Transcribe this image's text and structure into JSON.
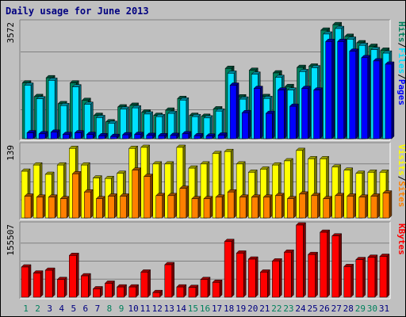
{
  "title": "Daily usage for June 2013",
  "colors": {
    "background": "#c0c0c0",
    "panel": "#c0c0c0",
    "title": "#000080",
    "hits": "#00805c",
    "files": "#00e0ff",
    "pages": "#0000ff",
    "visits": "#ffff00",
    "sites": "#ff8000",
    "kbytes": "#ff0000",
    "weekend_label": "#00805c",
    "weekday_label": "#000080"
  },
  "chart_data": [
    {
      "type": "bar",
      "name": "hits-files-pages",
      "max_label": "3572",
      "ylim": [
        0,
        3572
      ],
      "legend": [
        "Pages",
        "/",
        "Files",
        "/",
        "Hits"
      ],
      "categories": [
        "1",
        "2",
        "3",
        "4",
        "5",
        "6",
        "7",
        "8",
        "9",
        "10",
        "11",
        "12",
        "13",
        "14",
        "15",
        "16",
        "17",
        "18",
        "19",
        "20",
        "21",
        "22",
        "23",
        "24",
        "25",
        "26",
        "27",
        "28",
        "29",
        "30",
        "31"
      ],
      "series": [
        {
          "name": "Hits",
          "values": [
            1720,
            1300,
            1880,
            1080,
            1720,
            1180,
            720,
            520,
            980,
            1030,
            820,
            720,
            880,
            1240,
            720,
            690,
            920,
            2170,
            1290,
            2110,
            1300,
            2030,
            1610,
            2200,
            2240,
            3350,
            3520,
            3160,
            2960,
            2850,
            2730
          ]
        },
        {
          "name": "Files",
          "values": [
            1650,
            1230,
            1800,
            1020,
            1600,
            1060,
            650,
            470,
            910,
            950,
            760,
            680,
            780,
            1190,
            680,
            640,
            850,
            2020,
            1220,
            1990,
            1240,
            1890,
            1500,
            2070,
            2190,
            3230,
            3400,
            3070,
            2880,
            2750,
            2640
          ]
        },
        {
          "name": "Pages",
          "values": [
            180,
            150,
            200,
            130,
            180,
            130,
            90,
            70,
            120,
            130,
            100,
            90,
            100,
            150,
            90,
            80,
            110,
            1650,
            800,
            1550,
            780,
            1500,
            1000,
            1550,
            1500,
            3000,
            3000,
            2700,
            2500,
            2400,
            2300
          ]
        }
      ]
    },
    {
      "type": "bar",
      "name": "visits-sites",
      "max_label": "139",
      "ylim": [
        0,
        139
      ],
      "legend": [
        "Sites",
        "/",
        "Visits"
      ],
      "categories": [
        "1",
        "2",
        "3",
        "4",
        "5",
        "6",
        "7",
        "8",
        "9",
        "10",
        "11",
        "12",
        "13",
        "14",
        "15",
        "16",
        "17",
        "18",
        "19",
        "20",
        "21",
        "22",
        "23",
        "24",
        "25",
        "26",
        "27",
        "28",
        "29",
        "30",
        "31"
      ],
      "series": [
        {
          "name": "Visits",
          "values": [
            90,
            102,
            84,
            102,
            134,
            102,
            77,
            76,
            86,
            134,
            136,
            104,
            104,
            136,
            96,
            104,
            124,
            128,
            104,
            88,
            94,
            102,
            110,
            130,
            114,
            114,
            98,
            92,
            86,
            88,
            88
          ]
        },
        {
          "name": "Sites",
          "values": [
            42,
            40,
            40,
            37,
            85,
            50,
            37,
            42,
            42,
            92,
            80,
            43,
            43,
            57,
            37,
            37,
            40,
            50,
            40,
            40,
            40,
            43,
            37,
            46,
            43,
            37,
            43,
            42,
            40,
            42,
            48
          ]
        }
      ]
    },
    {
      "type": "bar",
      "name": "kbytes",
      "max_label": "155507",
      "ylim": [
        0,
        155507
      ],
      "legend": [
        "KBytes"
      ],
      "categories": [
        "1",
        "2",
        "3",
        "4",
        "5",
        "6",
        "7",
        "8",
        "9",
        "10",
        "11",
        "12",
        "13",
        "14",
        "15",
        "16",
        "17",
        "18",
        "19",
        "20",
        "21",
        "22",
        "23",
        "24",
        "25",
        "26",
        "27",
        "28",
        "29",
        "30",
        "31"
      ],
      "series": [
        {
          "name": "KBytes",
          "values": [
            65000,
            52000,
            58000,
            38000,
            90000,
            46000,
            18000,
            30000,
            22000,
            22000,
            54000,
            10000,
            70000,
            22000,
            21000,
            38000,
            32000,
            120000,
            95000,
            82000,
            54000,
            78000,
            97000,
            155507,
            92000,
            140000,
            132000,
            66000,
            81000,
            86000,
            88000
          ]
        }
      ]
    }
  ]
}
